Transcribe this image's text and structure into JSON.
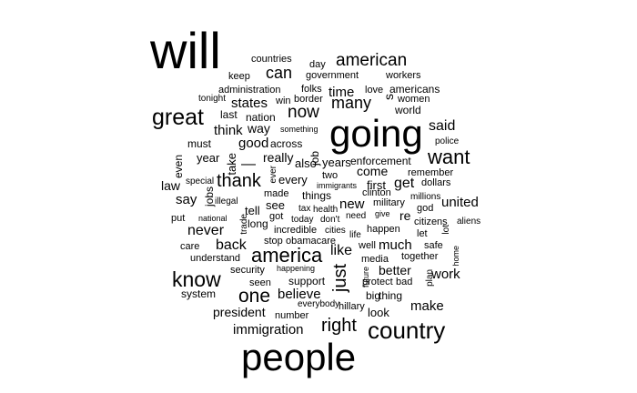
{
  "words": [
    {
      "text": "will"
    },
    {
      "text": "going"
    },
    {
      "text": "people"
    },
    {
      "text": "country"
    },
    {
      "text": "america"
    },
    {
      "text": "great"
    },
    {
      "text": "know"
    },
    {
      "text": "want"
    },
    {
      "text": "american"
    },
    {
      "text": "now"
    },
    {
      "text": "one"
    },
    {
      "text": "thank"
    },
    {
      "text": "right"
    },
    {
      "text": "many"
    },
    {
      "text": "can"
    },
    {
      "text": "immigration"
    },
    {
      "text": "said"
    },
    {
      "text": "get"
    },
    {
      "text": "like"
    },
    {
      "text": "just"
    },
    {
      "text": "back"
    },
    {
      "text": "never"
    },
    {
      "text": "make"
    },
    {
      "text": "time"
    },
    {
      "text": "say"
    },
    {
      "text": "states"
    },
    {
      "text": "think"
    },
    {
      "text": "new"
    },
    {
      "text": "much"
    },
    {
      "text": "believe"
    },
    {
      "text": "united"
    },
    {
      "text": "work"
    },
    {
      "text": "good"
    },
    {
      "text": "law"
    },
    {
      "text": "really"
    },
    {
      "text": "president"
    },
    {
      "text": "better"
    },
    {
      "text": "come"
    },
    {
      "text": "way"
    },
    {
      "text": "also"
    },
    {
      "text": "year"
    },
    {
      "text": "years"
    },
    {
      "text": "enforcement"
    },
    {
      "text": "every"
    },
    {
      "text": "must"
    },
    {
      "text": "system"
    },
    {
      "text": "look"
    },
    {
      "text": "even"
    },
    {
      "text": "take"
    },
    {
      "text": "job"
    },
    {
      "text": "s"
    },
    {
      "text": "security"
    },
    {
      "text": "support"
    },
    {
      "text": "first"
    },
    {
      "text": "tell"
    },
    {
      "text": "see"
    },
    {
      "text": "things"
    },
    {
      "text": "thing"
    },
    {
      "text": "big"
    },
    {
      "text": "nation"
    },
    {
      "text": "last"
    },
    {
      "text": "across"
    },
    {
      "text": "americans"
    },
    {
      "text": "love"
    },
    {
      "text": "world"
    },
    {
      "text": "women"
    },
    {
      "text": "workers"
    },
    {
      "text": "government"
    },
    {
      "text": "countries"
    },
    {
      "text": "day"
    },
    {
      "text": "keep"
    },
    {
      "text": "folks"
    },
    {
      "text": "border"
    },
    {
      "text": "administration"
    },
    {
      "text": "win"
    },
    {
      "text": "tonight"
    },
    {
      "text": "something"
    },
    {
      "text": "police"
    },
    {
      "text": "remember"
    },
    {
      "text": "dollars"
    },
    {
      "text": "two"
    },
    {
      "text": "immigrants"
    },
    {
      "text": "clinton"
    },
    {
      "text": "military"
    },
    {
      "text": "millions"
    },
    {
      "text": "god"
    },
    {
      "text": "made"
    },
    {
      "text": "special"
    },
    {
      "text": "jobs"
    },
    {
      "text": "ever"
    },
    {
      "text": "illegal"
    },
    {
      "text": "tax"
    },
    {
      "text": "health"
    },
    {
      "text": "give"
    },
    {
      "text": "re"
    },
    {
      "text": "citizens"
    },
    {
      "text": "aliens"
    },
    {
      "text": "put"
    },
    {
      "text": "national"
    },
    {
      "text": "long"
    },
    {
      "text": "trade"
    },
    {
      "text": "got"
    },
    {
      "text": "today"
    },
    {
      "text": "don't"
    },
    {
      "text": "need"
    },
    {
      "text": "lot"
    },
    {
      "text": "incredible"
    },
    {
      "text": "cities"
    },
    {
      "text": "happen"
    },
    {
      "text": "let"
    },
    {
      "text": "care"
    },
    {
      "text": "stop"
    },
    {
      "text": "obamacare"
    },
    {
      "text": "life"
    },
    {
      "text": "well"
    },
    {
      "text": "safe"
    },
    {
      "text": "home"
    },
    {
      "text": "understand"
    },
    {
      "text": "media"
    },
    {
      "text": "together"
    },
    {
      "text": "happening"
    },
    {
      "text": "future"
    },
    {
      "text": "plan"
    },
    {
      "text": "seen"
    },
    {
      "text": "protect"
    },
    {
      "text": "bad"
    },
    {
      "text": "everybody"
    },
    {
      "text": "hillary"
    },
    {
      "text": "number"
    },
    {
      "text": "—"
    }
  ]
}
